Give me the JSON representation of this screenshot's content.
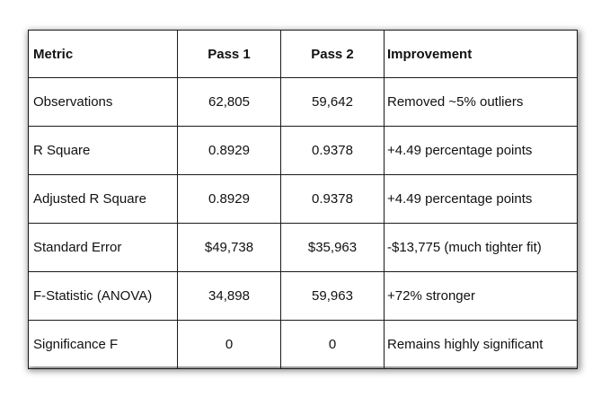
{
  "table": {
    "headers": {
      "metric": "Metric",
      "pass1": "Pass 1",
      "pass2": "Pass 2",
      "improvement": "Improvement"
    },
    "rows": [
      {
        "metric": "Observations",
        "pass1": "62,805",
        "pass2": "59,642",
        "improvement": "Removed ~5% outliers"
      },
      {
        "metric": "R Square",
        "pass1": "0.8929",
        "pass2": "0.9378",
        "improvement": "+4.49 percentage points"
      },
      {
        "metric": "Adjusted R Square",
        "pass1": "0.8929",
        "pass2": "0.9378",
        "improvement": "+4.49 percentage points"
      },
      {
        "metric": "Standard Error",
        "pass1": "$49,738",
        "pass2": "$35,963",
        "improvement": "-$13,775 (much tighter fit)"
      },
      {
        "metric": "F-Statistic (ANOVA)",
        "pass1": "34,898",
        "pass2": "59,963",
        "improvement": "+72% stronger"
      },
      {
        "metric": "Significance F",
        "pass1": "0",
        "pass2": "0",
        "improvement": "Remains highly significant"
      }
    ]
  }
}
